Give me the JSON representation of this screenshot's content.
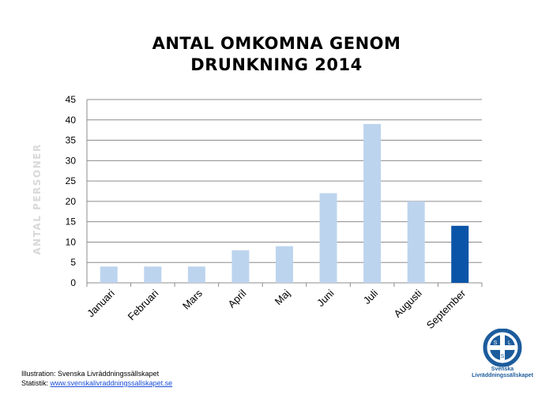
{
  "chart_data": {
    "type": "bar",
    "title_lines": [
      "ANTAL  OMKOMNA  GENOM",
      "DRUNKNING  2014"
    ],
    "ylabel": "ANTAL  PERSONER",
    "xlabel": "",
    "categories": [
      "Januari",
      "Februari",
      "Mars",
      "April",
      "Maj",
      "Juni",
      "Juli",
      "Augusti",
      "September"
    ],
    "values": [
      4,
      4,
      4,
      8,
      9,
      22,
      39,
      20,
      14
    ],
    "ylim": [
      0,
      45
    ],
    "yticks": [
      0,
      5,
      10,
      15,
      20,
      25,
      30,
      35,
      40,
      45
    ],
    "grid": true,
    "colors": {
      "bar": "#bdd4ee",
      "highlight_bar": "#0b55a8",
      "highlight_index": 8,
      "grid": "#8c8c8c",
      "axis": "#8c8c8c"
    }
  },
  "credits": {
    "illustration": "Illustration: Svenska Livräddningssällskapet",
    "statistik_prefix": "Statistik: ",
    "statistik_link": "www.svenskalivraddningssallskapet.se"
  },
  "logo": {
    "letters": [
      "S",
      "L",
      "S"
    ],
    "name_line1": "Svenska",
    "name_line2": "Livräddningssällskapet",
    "color": "#1c5c9c"
  }
}
